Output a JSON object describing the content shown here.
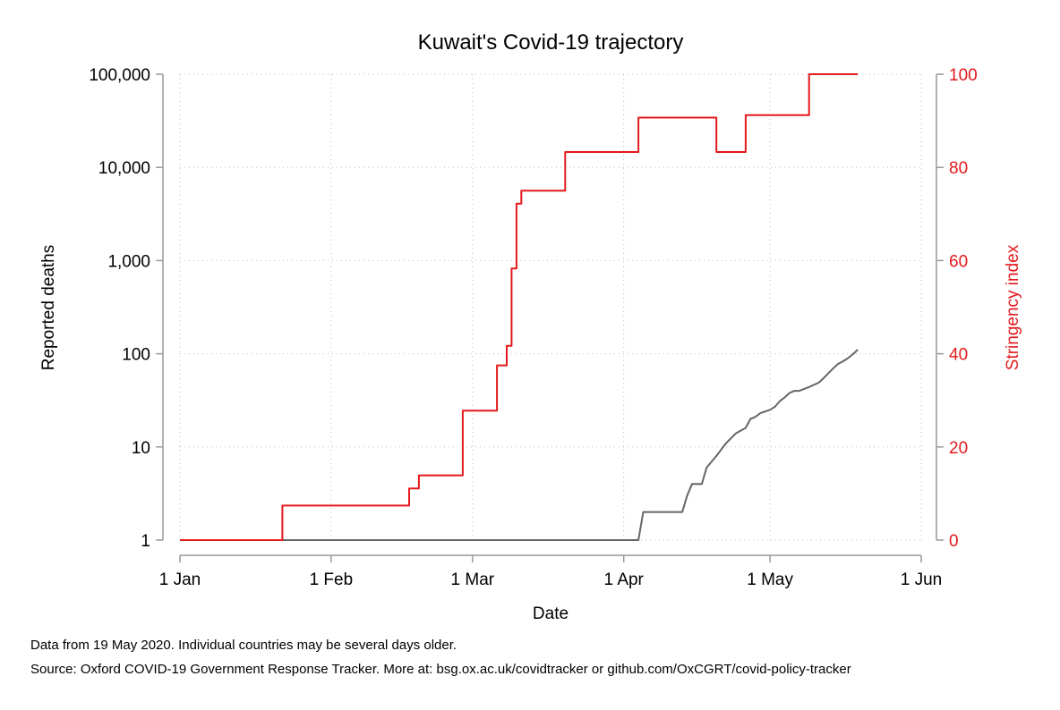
{
  "chart_data": {
    "type": "line",
    "title": "Kuwait's Covid-19 trajectory",
    "xlabel": "Date",
    "ylabel_left": "Reported deaths",
    "ylabel_right": "Stringency index",
    "x_axis": {
      "type": "date",
      "range": [
        "2020-01-01",
        "2020-06-01"
      ],
      "ticks": [
        {
          "date": "2020-01-01",
          "label": "1 Jan"
        },
        {
          "date": "2020-02-01",
          "label": "1 Feb"
        },
        {
          "date": "2020-03-01",
          "label": "1 Mar"
        },
        {
          "date": "2020-04-01",
          "label": "1 Apr"
        },
        {
          "date": "2020-05-01",
          "label": "1 May"
        },
        {
          "date": "2020-06-01",
          "label": "1 Jun"
        }
      ]
    },
    "y_left": {
      "scale": "log",
      "range": [
        1,
        100000
      ],
      "ticks": [
        {
          "value": 1,
          "label": "1"
        },
        {
          "value": 10,
          "label": "10"
        },
        {
          "value": 100,
          "label": "100"
        },
        {
          "value": 1000,
          "label": "1,000"
        },
        {
          "value": 10000,
          "label": "10,000"
        },
        {
          "value": 100000,
          "label": "100,000"
        }
      ]
    },
    "y_right": {
      "scale": "linear",
      "range": [
        0,
        100
      ],
      "ticks": [
        {
          "value": 0,
          "label": "0"
        },
        {
          "value": 20,
          "label": "20"
        },
        {
          "value": 40,
          "label": "40"
        },
        {
          "value": 60,
          "label": "60"
        },
        {
          "value": 80,
          "label": "80"
        },
        {
          "value": 100,
          "label": "100"
        }
      ]
    },
    "grid": true,
    "series": [
      {
        "axis": "left",
        "color": "#666666",
        "step": false,
        "points": [
          [
            "2020-01-01",
            1
          ],
          [
            "2020-04-04",
            1
          ],
          [
            "2020-04-05",
            2
          ],
          [
            "2020-04-13",
            2
          ],
          [
            "2020-04-14",
            3
          ],
          [
            "2020-04-15",
            4
          ],
          [
            "2020-04-17",
            4
          ],
          [
            "2020-04-18",
            6
          ],
          [
            "2020-04-20",
            8
          ],
          [
            "2020-04-22",
            11
          ],
          [
            "2020-04-24",
            14
          ],
          [
            "2020-04-26",
            16
          ],
          [
            "2020-04-27",
            20
          ],
          [
            "2020-04-28",
            21
          ],
          [
            "2020-04-29",
            23
          ],
          [
            "2020-05-01",
            25
          ],
          [
            "2020-05-02",
            27
          ],
          [
            "2020-05-03",
            31
          ],
          [
            "2020-05-04",
            34
          ],
          [
            "2020-05-05",
            38
          ],
          [
            "2020-05-06",
            40
          ],
          [
            "2020-05-07",
            40
          ],
          [
            "2020-05-09",
            44
          ],
          [
            "2020-05-11",
            49
          ],
          [
            "2020-05-12",
            55
          ],
          [
            "2020-05-13",
            62
          ],
          [
            "2020-05-14",
            70
          ],
          [
            "2020-05-15",
            78
          ],
          [
            "2020-05-16",
            83
          ],
          [
            "2020-05-17",
            90
          ],
          [
            "2020-05-18",
            99
          ],
          [
            "2020-05-19",
            111
          ]
        ]
      },
      {
        "axis": "right",
        "color": "#e3191c",
        "step": true,
        "points": [
          [
            "2020-01-01",
            0
          ],
          [
            "2020-01-22",
            7.4
          ],
          [
            "2020-02-17",
            11.1
          ],
          [
            "2020-02-19",
            13.9
          ],
          [
            "2020-02-28",
            27.8
          ],
          [
            "2020-03-06",
            37.5
          ],
          [
            "2020-03-08",
            41.7
          ],
          [
            "2020-03-09",
            58.3
          ],
          [
            "2020-03-10",
            72.2
          ],
          [
            "2020-03-11",
            75
          ],
          [
            "2020-03-20",
            83.3
          ],
          [
            "2020-04-04",
            90.7
          ],
          [
            "2020-04-20",
            83.3
          ],
          [
            "2020-04-26",
            91.2
          ],
          [
            "2020-05-09",
            100
          ],
          [
            "2020-05-19",
            100
          ]
        ]
      }
    ],
    "notes": [
      "Data from 19 May 2020. Individual countries may be several days older.",
      "Source: Oxford COVID-19 Government Response Tracker. More at: bsg.ox.ac.uk/covidtracker or github.com/OxCGRT/covid-policy-tracker"
    ],
    "colors": {
      "left_axis": "#000000",
      "right_axis": "#e3191c",
      "axis_line": "#999999",
      "grid": "#bbbbbb"
    }
  }
}
